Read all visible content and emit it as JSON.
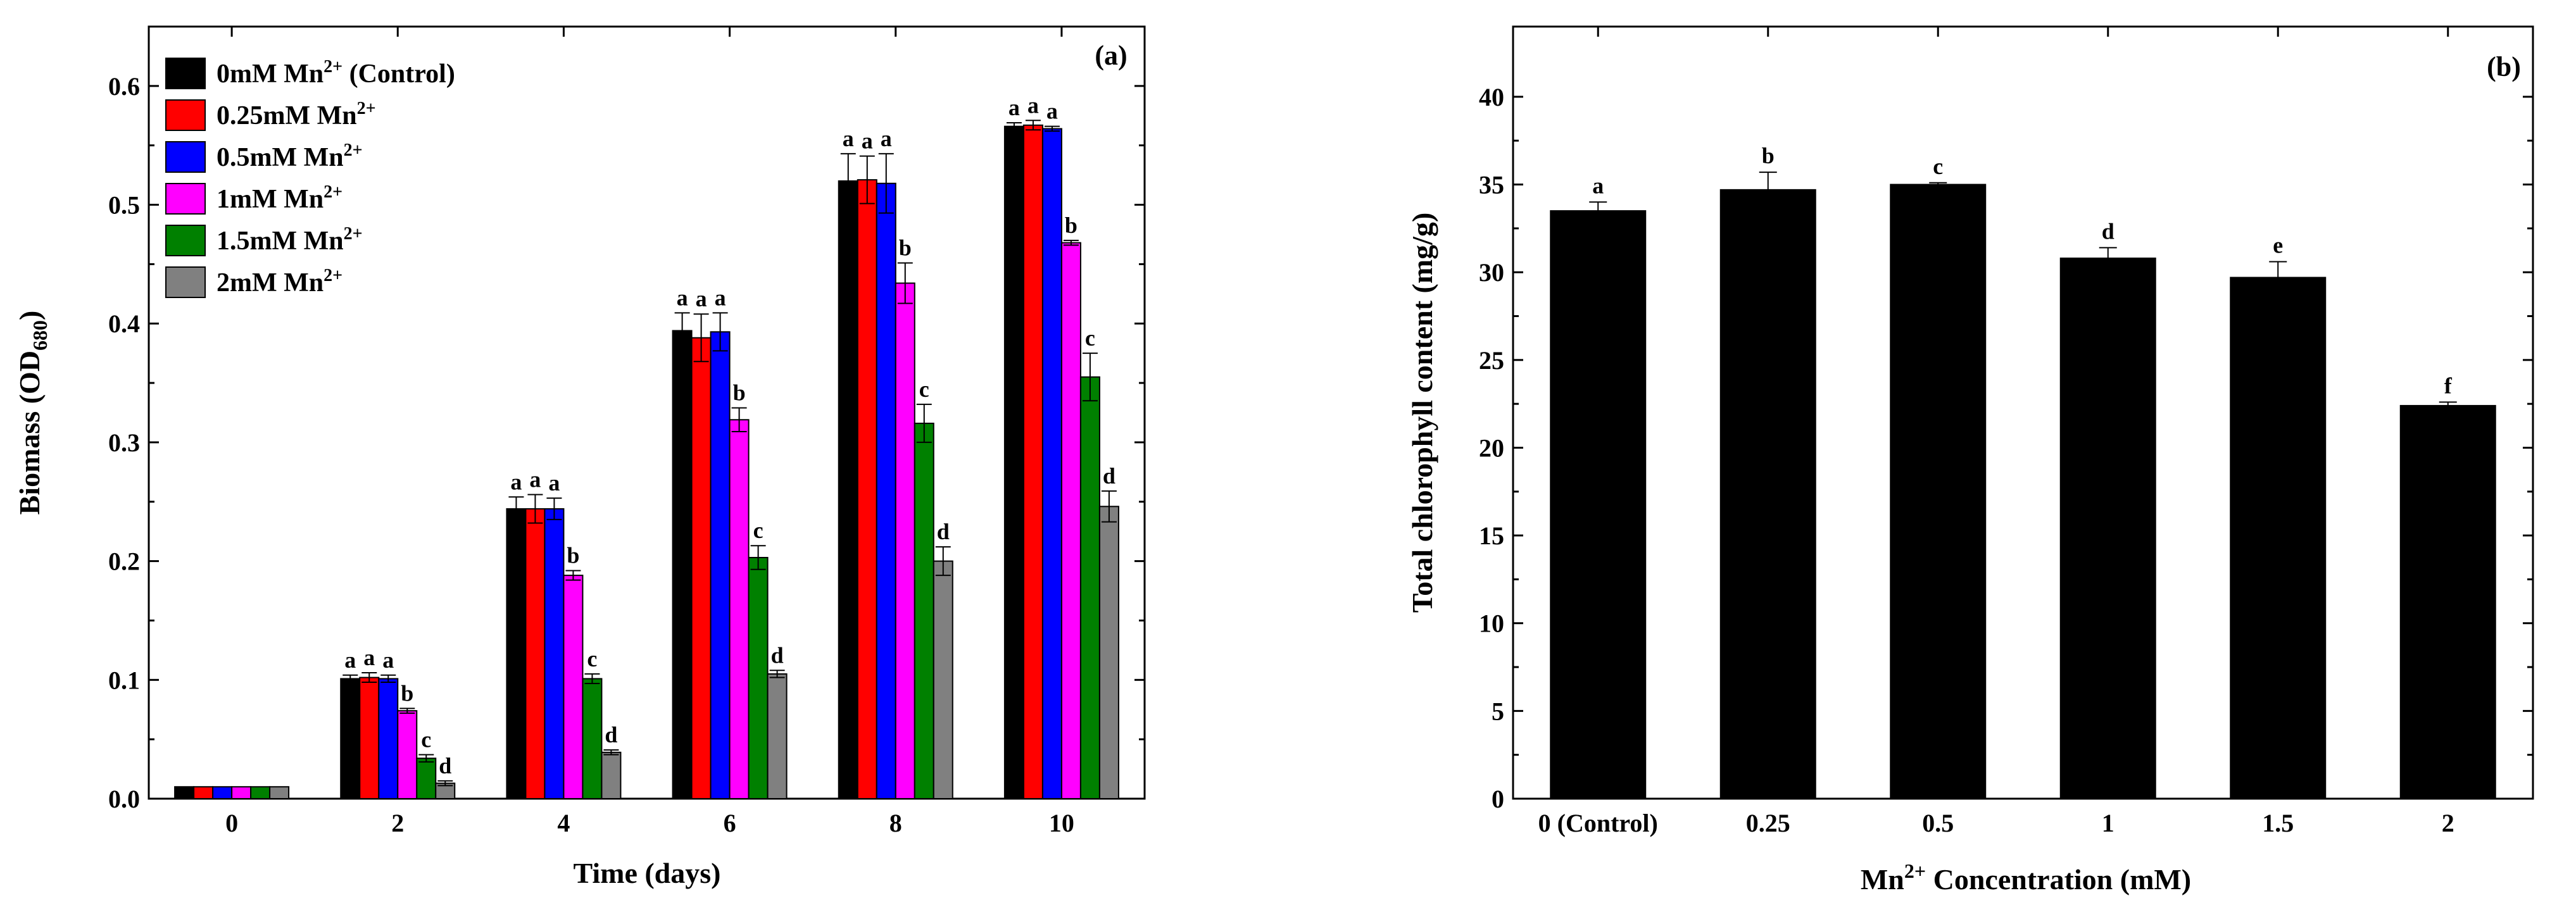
{
  "chart_data": [
    {
      "panel_label": "(a)",
      "type": "bar",
      "title": "",
      "xlabel": "Time (days)",
      "ylabel_main": "Biomass (OD",
      "ylabel_sub": "680",
      "ylabel_close": ")",
      "ylim": [
        0,
        0.65
      ],
      "yticks": [
        "0.0",
        "0.1",
        "0.2",
        "0.3",
        "0.4",
        "0.5",
        "0.6"
      ],
      "categories": [
        "0",
        "2",
        "4",
        "6",
        "8",
        "10"
      ],
      "legend_position": "top-left",
      "series": [
        {
          "name_base": "0mM Mn",
          "name_sup": "2+",
          "name_tail": " (Control)",
          "color": "#000000",
          "values": [
            0.01,
            0.101,
            0.244,
            0.394,
            0.52,
            0.566
          ],
          "errors": [
            0,
            0.003,
            0.01,
            0.015,
            0.023,
            0.003
          ],
          "letters": [
            "",
            "a",
            "a",
            "a",
            "a",
            "a"
          ]
        },
        {
          "name_base": "0.25mM Mn",
          "name_sup": "2+",
          "name_tail": "",
          "color": "#ff0000",
          "values": [
            0.01,
            0.102,
            0.244,
            0.388,
            0.521,
            0.567
          ],
          "errors": [
            0,
            0.004,
            0.012,
            0.02,
            0.02,
            0.004
          ],
          "letters": [
            "",
            "a",
            "a",
            "a",
            "a",
            "a"
          ]
        },
        {
          "name_base": "0.5mM Mn",
          "name_sup": "2+",
          "name_tail": "",
          "color": "#0000ff",
          "values": [
            0.01,
            0.101,
            0.244,
            0.393,
            0.518,
            0.564
          ],
          "errors": [
            0,
            0.003,
            0.009,
            0.016,
            0.025,
            0.002
          ],
          "letters": [
            "",
            "a",
            "a",
            "a",
            "a",
            "a"
          ]
        },
        {
          "name_base": "1mM Mn",
          "name_sup": "2+",
          "name_tail": "",
          "color": "#ff00ff",
          "values": [
            0.01,
            0.074,
            0.188,
            0.319,
            0.434,
            0.468
          ],
          "errors": [
            0,
            0.002,
            0.004,
            0.01,
            0.017,
            0.002
          ],
          "letters": [
            "",
            "b",
            "b",
            "b",
            "b",
            "b"
          ]
        },
        {
          "name_base": "1.5mM Mn",
          "name_sup": "2+",
          "name_tail": "",
          "color": "#008000",
          "values": [
            0.01,
            0.034,
            0.101,
            0.203,
            0.316,
            0.355
          ],
          "errors": [
            0,
            0.003,
            0.004,
            0.01,
            0.016,
            0.02
          ],
          "letters": [
            "",
            "c",
            "c",
            "c",
            "c",
            "c"
          ]
        },
        {
          "name_base": "2mM Mn",
          "name_sup": "2+",
          "name_tail": "",
          "color": "#808080",
          "values": [
            0.01,
            0.013,
            0.039,
            0.105,
            0.2,
            0.246
          ],
          "errors": [
            0,
            0.002,
            0.002,
            0.003,
            0.012,
            0.013
          ],
          "letters": [
            "",
            "d",
            "d",
            "d",
            "d",
            "d"
          ]
        }
      ]
    },
    {
      "panel_label": "(b)",
      "type": "bar",
      "title": "",
      "xlabel_base": "Mn",
      "xlabel_sup": "2+",
      "xlabel_tail": " Concentration (mM)",
      "ylabel": "Total chlorophyll content (mg/g)",
      "ylim": [
        0,
        44
      ],
      "yticks": [
        "0",
        "5",
        "10",
        "15",
        "20",
        "25",
        "30",
        "35",
        "40"
      ],
      "categories": [
        "0 (Control)",
        "0.25",
        "0.5",
        "1",
        "1.5",
        "2"
      ],
      "color": "#000000",
      "values": [
        33.5,
        34.7,
        35.0,
        30.8,
        29.7,
        22.4
      ],
      "errors": [
        0.5,
        1.0,
        0.1,
        0.6,
        0.9,
        0.2
      ],
      "letters": [
        "a",
        "b",
        "c",
        "d",
        "e",
        "f"
      ]
    }
  ]
}
